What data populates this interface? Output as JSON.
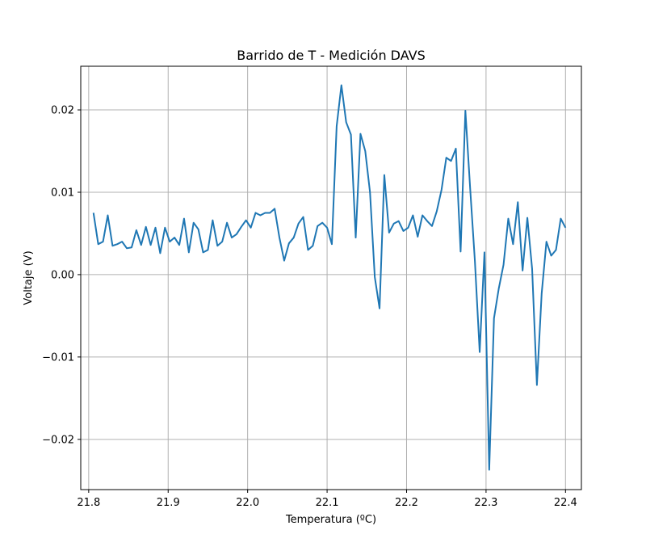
{
  "chart_data": {
    "type": "line",
    "title": "Barrido de T - Medición DAVS",
    "xlabel": "Temperatura (ºC)",
    "ylabel": "Voltaje (V)",
    "xlim": [
      21.79,
      22.42
    ],
    "ylim": [
      -0.0261,
      0.0253
    ],
    "xticks": [
      21.8,
      21.9,
      22.0,
      22.1,
      22.2,
      22.3,
      22.4
    ],
    "xtick_labels": [
      "21.8",
      "21.9",
      "22.0",
      "22.1",
      "22.2",
      "22.3",
      "22.4"
    ],
    "yticks": [
      -0.02,
      -0.01,
      0.0,
      0.01,
      0.02
    ],
    "ytick_labels": [
      "−0.02",
      "−0.01",
      "0.00",
      "0.01",
      "0.02"
    ],
    "grid": true,
    "line_color": "#1f77b4",
    "series": [
      {
        "name": "",
        "x": [
          21.806,
          21.812,
          21.818,
          21.824,
          21.83,
          21.836,
          21.842,
          21.848,
          21.854,
          21.86,
          21.866,
          21.872,
          21.878,
          21.884,
          21.89,
          21.896,
          21.902,
          21.908,
          21.914,
          21.92,
          21.926,
          21.932,
          21.938,
          21.944,
          21.95,
          21.956,
          21.962,
          21.968,
          21.974,
          21.98,
          21.986,
          21.992,
          21.998,
          22.004,
          22.01,
          22.016,
          22.022,
          22.028,
          22.034,
          22.04,
          22.046,
          22.052,
          22.058,
          22.064,
          22.07,
          22.076,
          22.082,
          22.088,
          22.094,
          22.1,
          22.106,
          22.112,
          22.118,
          22.124,
          22.13,
          22.136,
          22.142,
          22.148,
          22.154,
          22.16,
          22.166,
          22.172,
          22.178,
          22.184,
          22.19,
          22.196,
          22.202,
          22.208,
          22.214,
          22.22,
          22.226,
          22.232,
          22.238,
          22.244,
          22.25,
          22.256,
          22.262,
          22.268,
          22.274,
          22.28,
          22.286,
          22.292,
          22.298,
          22.304,
          22.31,
          22.316,
          22.322,
          22.328,
          22.334,
          22.34,
          22.346,
          22.352,
          22.358,
          22.364,
          22.37,
          22.376,
          22.382,
          22.388,
          22.394,
          22.4
        ],
        "y": [
          0.0075,
          0.0037,
          0.004,
          0.0072,
          0.0035,
          0.0037,
          0.004,
          0.0032,
          0.0033,
          0.0054,
          0.0036,
          0.0058,
          0.0036,
          0.0057,
          0.0026,
          0.0057,
          0.004,
          0.0045,
          0.0036,
          0.0068,
          0.0027,
          0.0063,
          0.0055,
          0.0027,
          0.003,
          0.0066,
          0.0035,
          0.004,
          0.0063,
          0.0045,
          0.0049,
          0.0058,
          0.0066,
          0.0057,
          0.0075,
          0.0072,
          0.0075,
          0.0075,
          0.008,
          0.0045,
          0.0017,
          0.0038,
          0.0045,
          0.0062,
          0.007,
          0.003,
          0.0035,
          0.0059,
          0.0063,
          0.0057,
          0.0037,
          0.018,
          0.023,
          0.0185,
          0.017,
          0.0045,
          0.0171,
          0.015,
          0.01,
          -0.0003,
          -0.0041,
          0.0121,
          0.0051,
          0.0062,
          0.0065,
          0.0053,
          0.0057,
          0.0072,
          0.0046,
          0.0072,
          0.0065,
          0.0059,
          0.0077,
          0.0103,
          0.0142,
          0.0138,
          0.0153,
          0.0028,
          0.0199,
          0.0105,
          0.0016,
          -0.0094,
          0.0027,
          -0.0237,
          -0.0053,
          -0.0017,
          0.0012,
          0.0068,
          0.0037,
          0.0088,
          0.0005,
          0.0069,
          0.0007,
          -0.0134,
          -0.0023,
          0.004,
          0.0023,
          0.003,
          0.0068,
          0.0057
        ]
      }
    ]
  }
}
